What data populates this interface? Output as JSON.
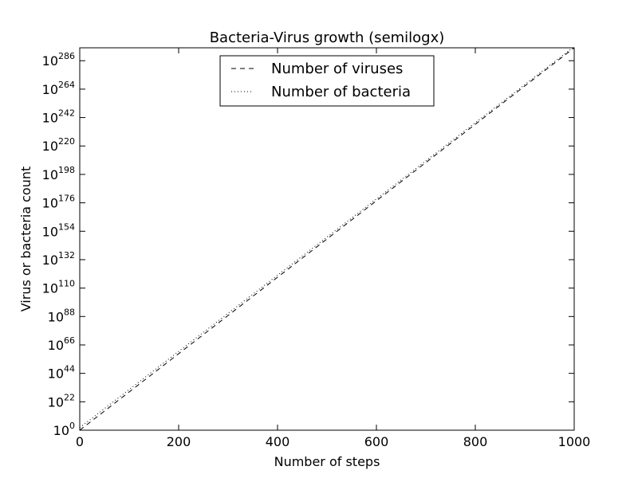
{
  "chart_data": {
    "type": "line",
    "title": "Bacteria-Virus growth (semilogx)",
    "xlabel": "Number of steps",
    "ylabel": "Virus or bacteria count",
    "xlim": [
      0,
      1000
    ],
    "xticks": [
      0,
      200,
      400,
      600,
      800,
      1000
    ],
    "y_scale": "log10",
    "ylim_exponent": [
      0,
      296
    ],
    "yticks_exponent": [
      0,
      22,
      44,
      66,
      88,
      110,
      132,
      154,
      176,
      198,
      220,
      242,
      264,
      286
    ],
    "ytick_base": "10",
    "grid": false,
    "legend_position": "upper-center",
    "series": [
      {
        "name": "Number of viruses",
        "style": "dashed",
        "color": "#000000",
        "x": [
          0,
          1000
        ],
        "log10_y": [
          0,
          296
        ]
      },
      {
        "name": "Number of bacteria",
        "style": "dotted",
        "color": "#000000",
        "x": [
          0,
          1000
        ],
        "log10_y": [
          2,
          297
        ]
      }
    ]
  }
}
